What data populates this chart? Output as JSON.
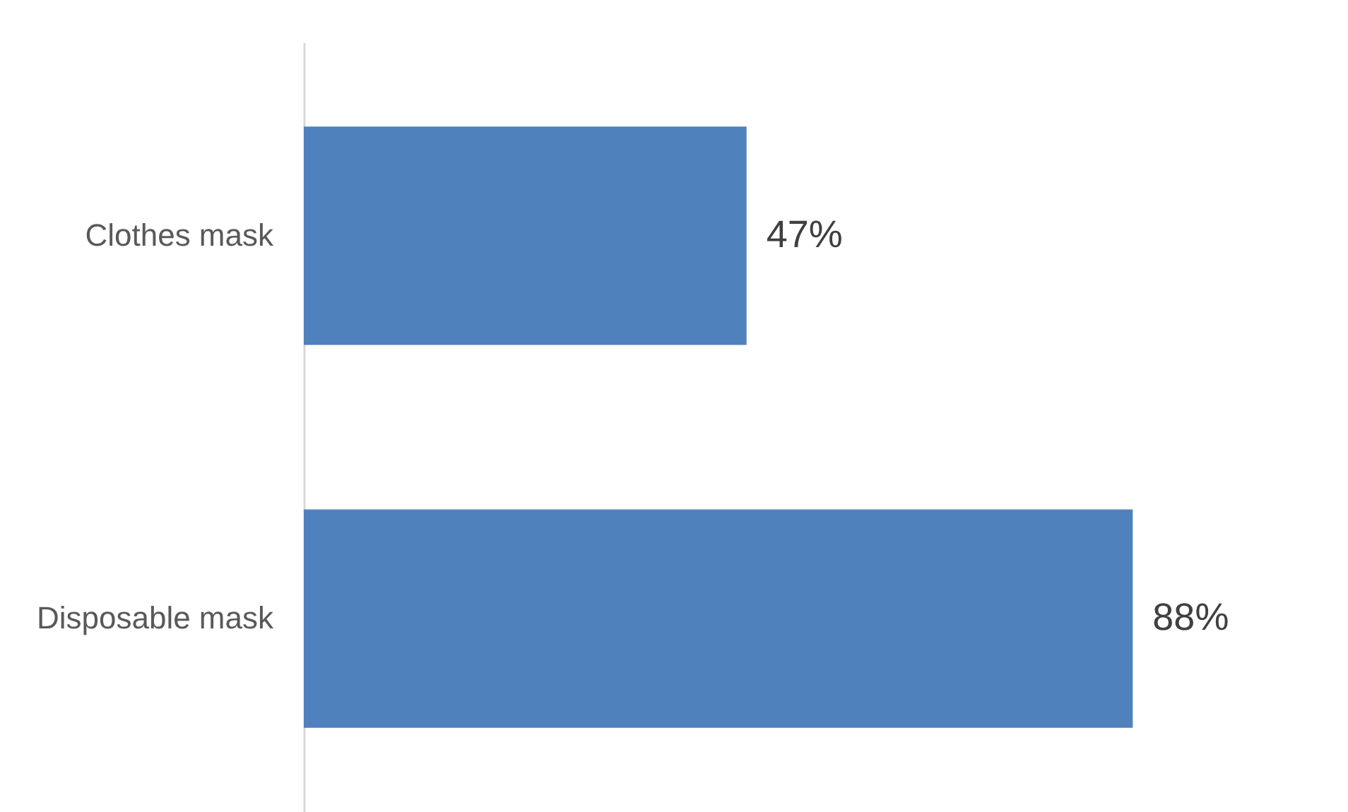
{
  "chart_data": {
    "type": "bar",
    "orientation": "horizontal",
    "categories": [
      "Clothes mask",
      "Disposable mask"
    ],
    "values": [
      47,
      88
    ],
    "value_labels": [
      "47%",
      "88%"
    ],
    "color": "#4f81bd",
    "xlim": [
      0,
      105
    ],
    "tick_labels": "y"
  }
}
